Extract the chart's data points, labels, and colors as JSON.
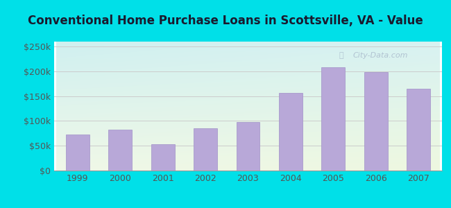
{
  "title": "Conventional Home Purchase Loans in Scottsville, VA - Value",
  "years": [
    "1999",
    "2000",
    "2001",
    "2002",
    "2003",
    "2004",
    "2005",
    "2006",
    "2007"
  ],
  "values": [
    72000,
    83000,
    53000,
    85000,
    98000,
    157000,
    208000,
    198000,
    165000
  ],
  "bar_color": "#b8a8d8",
  "bar_edge_color": "#a090c8",
  "outer_background": "#00e0e8",
  "plot_bg_topleft": "#d0f0f0",
  "plot_bg_bottomright": "#e8f5e0",
  "grid_color": "#cccccc",
  "yticks": [
    0,
    50000,
    100000,
    150000,
    200000,
    250000
  ],
  "ytick_labels": [
    "$0",
    "$50k",
    "$100k",
    "$150k",
    "$200k",
    "$250k"
  ],
  "ylim": [
    0,
    260000
  ],
  "title_fontsize": 12,
  "tick_fontsize": 9,
  "tick_color": "#555555",
  "watermark_text": "City-Data.com",
  "watermark_color": "#aabbcc",
  "title_color": "#1a1a2e"
}
